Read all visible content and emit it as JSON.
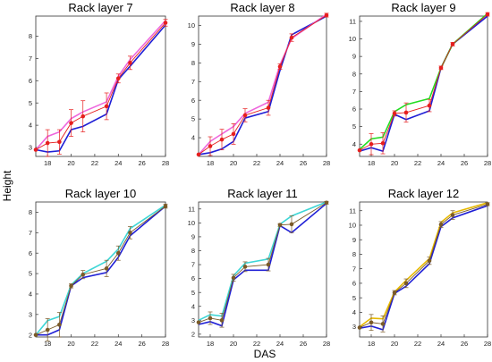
{
  "figure": {
    "xlabel": "DAS",
    "ylabel": "Height"
  },
  "chart_data": [
    {
      "type": "line",
      "title": "Rack layer 7",
      "x": [
        17,
        18,
        19,
        20,
        21,
        23,
        24,
        25,
        28
      ],
      "xlim": [
        17,
        28
      ],
      "xticks": [
        18,
        20,
        22,
        24,
        26,
        28
      ],
      "ylim": [
        2.6,
        8.9
      ],
      "yticks": [
        3,
        4,
        5,
        6,
        7,
        8
      ],
      "series": [
        {
          "color": "#1f1fd6",
          "values": [
            2.9,
            2.8,
            2.85,
            3.8,
            3.95,
            4.5,
            6.05,
            6.65,
            8.5
          ]
        },
        {
          "color": "#ee66dd",
          "values": [
            2.9,
            3.5,
            3.7,
            4.3,
            4.6,
            5.05,
            6.2,
            6.95,
            8.7
          ]
        },
        {
          "color": "#e61e1e",
          "marker": true,
          "values": [
            2.9,
            3.2,
            3.25,
            4.1,
            4.4,
            4.85,
            6.1,
            6.8,
            8.6
          ],
          "err": [
            0,
            0.6,
            0.55,
            0.6,
            0.7,
            0.6,
            0.2,
            0.3,
            0.15
          ]
        }
      ]
    },
    {
      "type": "line",
      "title": "Rack layer 8",
      "x": [
        17,
        18,
        19,
        20,
        21,
        23,
        24,
        25,
        28
      ],
      "xlim": [
        17,
        28
      ],
      "xticks": [
        18,
        20,
        22,
        24,
        26,
        28
      ],
      "ylim": [
        3,
        10.5
      ],
      "yticks": [
        4,
        5,
        6,
        7,
        8,
        9,
        10
      ],
      "series": [
        {
          "color": "#1f1fd6",
          "values": [
            3.1,
            3.2,
            3.4,
            3.8,
            5.05,
            5.4,
            7.6,
            9.5,
            10.5
          ]
        },
        {
          "color": "#ee66dd",
          "values": [
            3.1,
            3.8,
            4.2,
            4.6,
            5.3,
            5.9,
            7.9,
            9.3,
            10.6
          ]
        },
        {
          "color": "#e61e1e",
          "marker": true,
          "values": [
            3.1,
            3.55,
            3.9,
            4.2,
            5.2,
            5.6,
            7.8,
            9.35,
            10.55
          ],
          "err": [
            0,
            0.5,
            0.55,
            0.55,
            0.35,
            0.4,
            0.15,
            0.2,
            0.1
          ]
        }
      ]
    },
    {
      "type": "line",
      "title": "Rack layer 9",
      "x": [
        17,
        18,
        19,
        20,
        21,
        23,
        24,
        25,
        28
      ],
      "xlim": [
        17,
        28
      ],
      "xticks": [
        18,
        20,
        22,
        24,
        26,
        28
      ],
      "ylim": [
        3.3,
        11.3
      ],
      "yticks": [
        4,
        5,
        6,
        7,
        8,
        9,
        10,
        11
      ],
      "series": [
        {
          "color": "#1f1fd6",
          "values": [
            3.6,
            3.8,
            3.6,
            5.7,
            5.4,
            5.9,
            8.35,
            9.7,
            11.3
          ]
        },
        {
          "color": "#22dd22",
          "values": [
            3.7,
            4.3,
            4.4,
            5.85,
            6.25,
            6.6,
            8.35,
            9.7,
            11.45
          ]
        },
        {
          "color": "#e61e1e",
          "marker": true,
          "values": [
            3.65,
            4.0,
            4.05,
            5.75,
            5.8,
            6.2,
            8.35,
            9.7,
            11.4
          ],
          "err": [
            0,
            0.6,
            0.6,
            0.15,
            0.55,
            0.35,
            0.1,
            0.1,
            0.1
          ]
        }
      ]
    },
    {
      "type": "line",
      "title": "Rack  layer 10",
      "x": [
        17,
        18,
        19,
        20,
        21,
        23,
        24,
        25,
        28
      ],
      "xlim": [
        17,
        28
      ],
      "xticks": [
        18,
        20,
        22,
        24,
        26,
        28
      ],
      "ylim": [
        1.9,
        8.5
      ],
      "yticks": [
        2,
        3,
        4,
        5,
        6,
        7,
        8
      ],
      "series": [
        {
          "color": "#1f1fd6",
          "values": [
            2.0,
            2.0,
            2.25,
            4.4,
            4.8,
            5.05,
            5.8,
            6.85,
            8.3
          ]
        },
        {
          "color": "#3ed6d6",
          "values": [
            2.0,
            2.7,
            2.9,
            4.45,
            5.0,
            5.6,
            6.2,
            7.2,
            8.35
          ]
        },
        {
          "color": "#7a5a28",
          "marker": true,
          "values": [
            2.0,
            2.25,
            2.5,
            4.4,
            4.95,
            5.25,
            6.0,
            7.0,
            8.3
          ],
          "err": [
            0,
            0.55,
            0.6,
            0.1,
            0.2,
            0.4,
            0.35,
            0.3,
            0.1
          ]
        }
      ]
    },
    {
      "type": "line",
      "title": "Rack layer 11",
      "x": [
        17,
        18,
        19,
        20,
        21,
        23,
        24,
        25,
        28
      ],
      "xlim": [
        17,
        28
      ],
      "xticks": [
        18,
        20,
        22,
        24,
        26,
        28
      ],
      "ylim": [
        1.8,
        11.5
      ],
      "yticks": [
        2,
        3,
        4,
        5,
        6,
        7,
        8,
        9,
        10,
        11
      ],
      "series": [
        {
          "color": "#1f1fd6",
          "values": [
            2.7,
            2.9,
            2.6,
            5.9,
            6.6,
            6.6,
            9.8,
            9.3,
            11.4
          ]
        },
        {
          "color": "#3ed6d6",
          "values": [
            3.0,
            3.4,
            3.3,
            6.2,
            7.1,
            7.4,
            9.9,
            10.5,
            11.5
          ]
        },
        {
          "color": "#7a5a28",
          "marker": true,
          "values": [
            2.85,
            3.15,
            3.0,
            6.05,
            6.85,
            7.0,
            9.85,
            9.9,
            11.45
          ],
          "err": [
            0,
            0.45,
            0.5,
            0.25,
            0.35,
            0.45,
            0.1,
            0.6,
            0.1
          ]
        }
      ]
    },
    {
      "type": "line",
      "title": "Rack layer 12",
      "x": [
        17,
        18,
        19,
        20,
        21,
        23,
        24,
        25,
        28
      ],
      "xlim": [
        17,
        28
      ],
      "xticks": [
        18,
        20,
        22,
        24,
        26,
        28
      ],
      "ylim": [
        2.3,
        11.6
      ],
      "yticks": [
        3,
        4,
        5,
        6,
        7,
        8,
        9,
        10,
        11
      ],
      "series": [
        {
          "color": "#1f1fd6",
          "values": [
            2.9,
            3.05,
            2.8,
            5.3,
            5.8,
            7.35,
            9.9,
            10.5,
            11.35
          ]
        },
        {
          "color": "#e6b800",
          "values": [
            3.0,
            3.6,
            3.55,
            5.4,
            6.2,
            7.7,
            10.2,
            10.85,
            11.55
          ]
        },
        {
          "color": "#7a5a28",
          "marker": true,
          "values": [
            2.95,
            3.3,
            3.2,
            5.35,
            6.0,
            7.55,
            10.05,
            10.7,
            11.45
          ],
          "err": [
            0,
            0.55,
            0.55,
            0.15,
            0.3,
            0.25,
            0.2,
            0.3,
            0.1
          ]
        }
      ]
    }
  ]
}
